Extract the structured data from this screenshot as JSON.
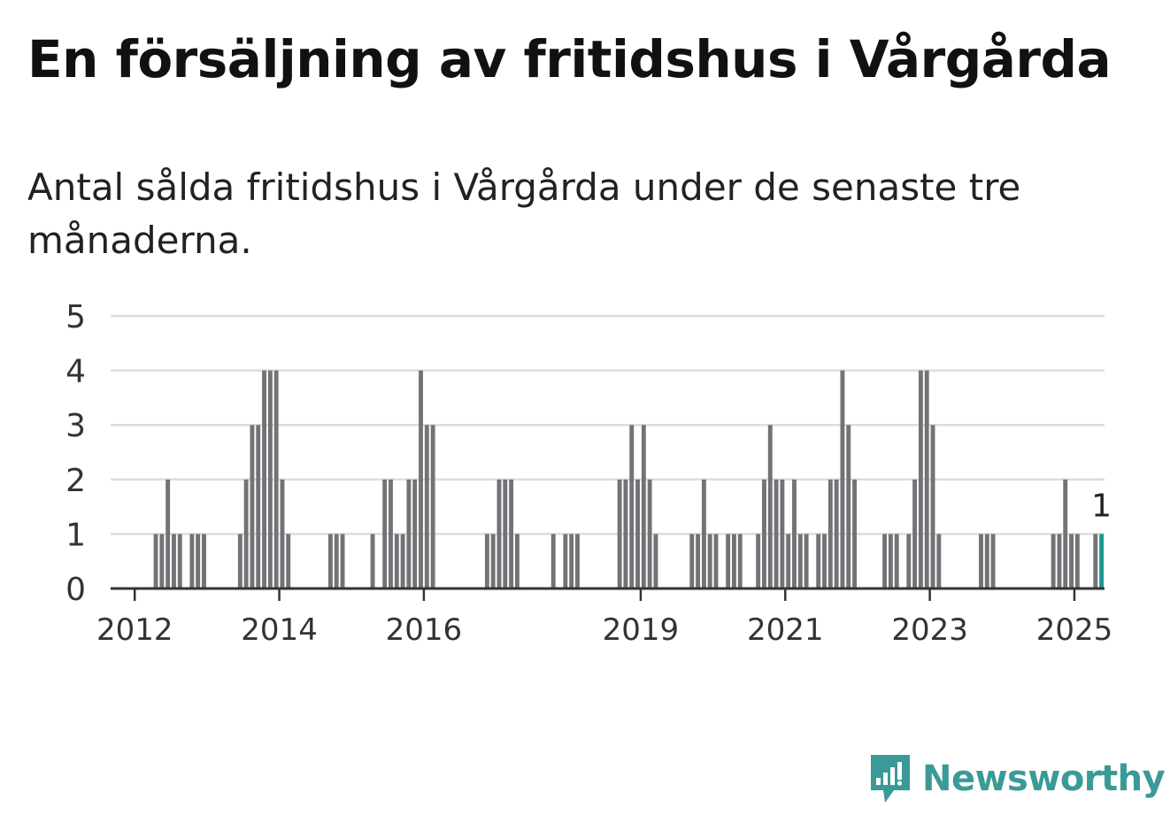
{
  "title": "En försäljning av fritidshus i Vårgårda",
  "subtitle": "Antal sålda fritidshus i Vårgårda under de senaste tre månaderna.",
  "brand": {
    "name": "Newsworthy",
    "color": "#3a9a97"
  },
  "colors": {
    "bar": "#737377",
    "highlight": "#1a9990",
    "grid": "#dddddd",
    "axis": "#333333",
    "text": "#333333"
  },
  "chart_data": {
    "type": "bar",
    "x_unit": "month",
    "x_start": "2011-09",
    "x_end": "2025-06",
    "ylim": [
      0,
      5
    ],
    "y_ticks": [
      0,
      1,
      2,
      3,
      4,
      5
    ],
    "x_tick_labels": [
      {
        "label": "2012",
        "date": "2012-01"
      },
      {
        "label": "2014",
        "date": "2014-01"
      },
      {
        "label": "2016",
        "date": "2016-01"
      },
      {
        "label": "2019",
        "date": "2019-01"
      },
      {
        "label": "2021",
        "date": "2021-01"
      },
      {
        "label": "2023",
        "date": "2023-01"
      },
      {
        "label": "2025",
        "date": "2025-01"
      }
    ],
    "grid": true,
    "highlight": {
      "date": "2025-05",
      "value": 1,
      "label": "1"
    },
    "bars": [
      {
        "date": "2012-04",
        "value": 1
      },
      {
        "date": "2012-05",
        "value": 1
      },
      {
        "date": "2012-06",
        "value": 2
      },
      {
        "date": "2012-07",
        "value": 1
      },
      {
        "date": "2012-08",
        "value": 1
      },
      {
        "date": "2012-10",
        "value": 1
      },
      {
        "date": "2012-11",
        "value": 1
      },
      {
        "date": "2012-12",
        "value": 1
      },
      {
        "date": "2013-06",
        "value": 1
      },
      {
        "date": "2013-07",
        "value": 2
      },
      {
        "date": "2013-08",
        "value": 3
      },
      {
        "date": "2013-09",
        "value": 3
      },
      {
        "date": "2013-10",
        "value": 4
      },
      {
        "date": "2013-11",
        "value": 4
      },
      {
        "date": "2013-12",
        "value": 4
      },
      {
        "date": "2014-01",
        "value": 2
      },
      {
        "date": "2014-02",
        "value": 1
      },
      {
        "date": "2014-09",
        "value": 1
      },
      {
        "date": "2014-10",
        "value": 1
      },
      {
        "date": "2014-11",
        "value": 1
      },
      {
        "date": "2015-04",
        "value": 1
      },
      {
        "date": "2015-06",
        "value": 2
      },
      {
        "date": "2015-07",
        "value": 2
      },
      {
        "date": "2015-08",
        "value": 1
      },
      {
        "date": "2015-09",
        "value": 1
      },
      {
        "date": "2015-10",
        "value": 2
      },
      {
        "date": "2015-11",
        "value": 2
      },
      {
        "date": "2015-12",
        "value": 4
      },
      {
        "date": "2016-01",
        "value": 3
      },
      {
        "date": "2016-02",
        "value": 3
      },
      {
        "date": "2016-11",
        "value": 1
      },
      {
        "date": "2016-12",
        "value": 1
      },
      {
        "date": "2017-01",
        "value": 2
      },
      {
        "date": "2017-02",
        "value": 2
      },
      {
        "date": "2017-03",
        "value": 2
      },
      {
        "date": "2017-04",
        "value": 1
      },
      {
        "date": "2017-10",
        "value": 1
      },
      {
        "date": "2017-12",
        "value": 1
      },
      {
        "date": "2018-01",
        "value": 1
      },
      {
        "date": "2018-02",
        "value": 1
      },
      {
        "date": "2018-09",
        "value": 2
      },
      {
        "date": "2018-10",
        "value": 2
      },
      {
        "date": "2018-11",
        "value": 3
      },
      {
        "date": "2018-12",
        "value": 2
      },
      {
        "date": "2019-01",
        "value": 3
      },
      {
        "date": "2019-02",
        "value": 2
      },
      {
        "date": "2019-03",
        "value": 1
      },
      {
        "date": "2019-09",
        "value": 1
      },
      {
        "date": "2019-10",
        "value": 1
      },
      {
        "date": "2019-11",
        "value": 2
      },
      {
        "date": "2019-12",
        "value": 1
      },
      {
        "date": "2020-01",
        "value": 1
      },
      {
        "date": "2020-03",
        "value": 1
      },
      {
        "date": "2020-04",
        "value": 1
      },
      {
        "date": "2020-05",
        "value": 1
      },
      {
        "date": "2020-08",
        "value": 1
      },
      {
        "date": "2020-09",
        "value": 2
      },
      {
        "date": "2020-10",
        "value": 3
      },
      {
        "date": "2020-11",
        "value": 2
      },
      {
        "date": "2020-12",
        "value": 2
      },
      {
        "date": "2021-01",
        "value": 1
      },
      {
        "date": "2021-02",
        "value": 2
      },
      {
        "date": "2021-03",
        "value": 1
      },
      {
        "date": "2021-04",
        "value": 1
      },
      {
        "date": "2021-06",
        "value": 1
      },
      {
        "date": "2021-07",
        "value": 1
      },
      {
        "date": "2021-08",
        "value": 2
      },
      {
        "date": "2021-09",
        "value": 2
      },
      {
        "date": "2021-10",
        "value": 4
      },
      {
        "date": "2021-11",
        "value": 3
      },
      {
        "date": "2021-12",
        "value": 2
      },
      {
        "date": "2022-05",
        "value": 1
      },
      {
        "date": "2022-06",
        "value": 1
      },
      {
        "date": "2022-07",
        "value": 1
      },
      {
        "date": "2022-09",
        "value": 1
      },
      {
        "date": "2022-10",
        "value": 2
      },
      {
        "date": "2022-11",
        "value": 4
      },
      {
        "date": "2022-12",
        "value": 4
      },
      {
        "date": "2023-01",
        "value": 3
      },
      {
        "date": "2023-02",
        "value": 1
      },
      {
        "date": "2023-09",
        "value": 1
      },
      {
        "date": "2023-10",
        "value": 1
      },
      {
        "date": "2023-11",
        "value": 1
      },
      {
        "date": "2024-09",
        "value": 1
      },
      {
        "date": "2024-10",
        "value": 1
      },
      {
        "date": "2024-11",
        "value": 2
      },
      {
        "date": "2024-12",
        "value": 1
      },
      {
        "date": "2025-01",
        "value": 1
      },
      {
        "date": "2025-04",
        "value": 1
      },
      {
        "date": "2025-05",
        "value": 1
      }
    ]
  }
}
